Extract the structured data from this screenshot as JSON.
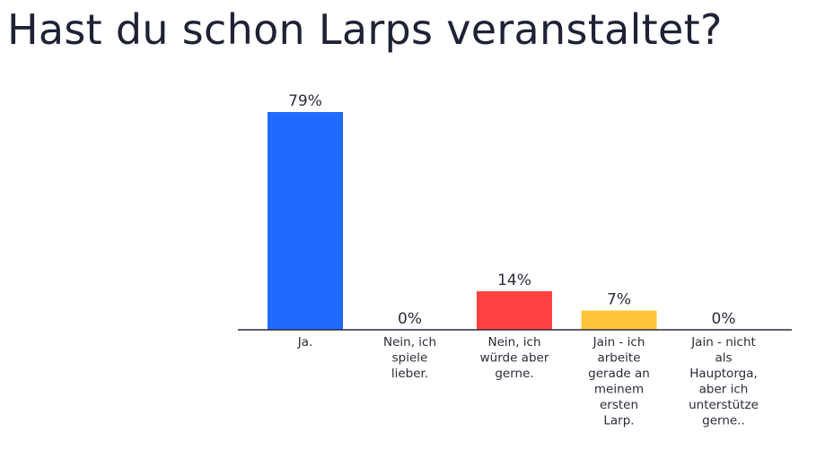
{
  "title": "Hast du schon Larps veranstaltet?",
  "chart_data": {
    "type": "bar",
    "title": "Hast du schon Larps veranstaltet?",
    "categories": [
      "Ja.",
      "Nein, ich spiele lieber.",
      "Nein, ich würde aber gerne.",
      "Jain - ich arbeite gerade an meinem ersten Larp.",
      "Jain - nicht als Hauptorga, aber ich unterstütze gerne.."
    ],
    "category_lines": [
      [
        "Ja."
      ],
      [
        "Nein, ich",
        "spiele",
        "lieber."
      ],
      [
        "Nein, ich",
        "würde aber",
        "gerne."
      ],
      [
        "Jain - ich",
        "arbeite",
        "gerade an",
        "meinem",
        "ersten",
        "Larp."
      ],
      [
        "Jain - nicht",
        "als",
        "Hauptorga,",
        "aber ich",
        "unterstütze",
        "gerne.."
      ]
    ],
    "values": [
      79,
      0,
      14,
      7,
      0
    ],
    "value_labels": [
      "79%",
      "0%",
      "14%",
      "7%",
      "0%"
    ],
    "colors": [
      "#1f6bff",
      "#1f6bff",
      "#ff4040",
      "#ffc43a",
      "#1f6bff"
    ],
    "ylim": [
      0,
      79
    ],
    "xlabel": "",
    "ylabel": "",
    "grid": false,
    "legend": "none"
  }
}
